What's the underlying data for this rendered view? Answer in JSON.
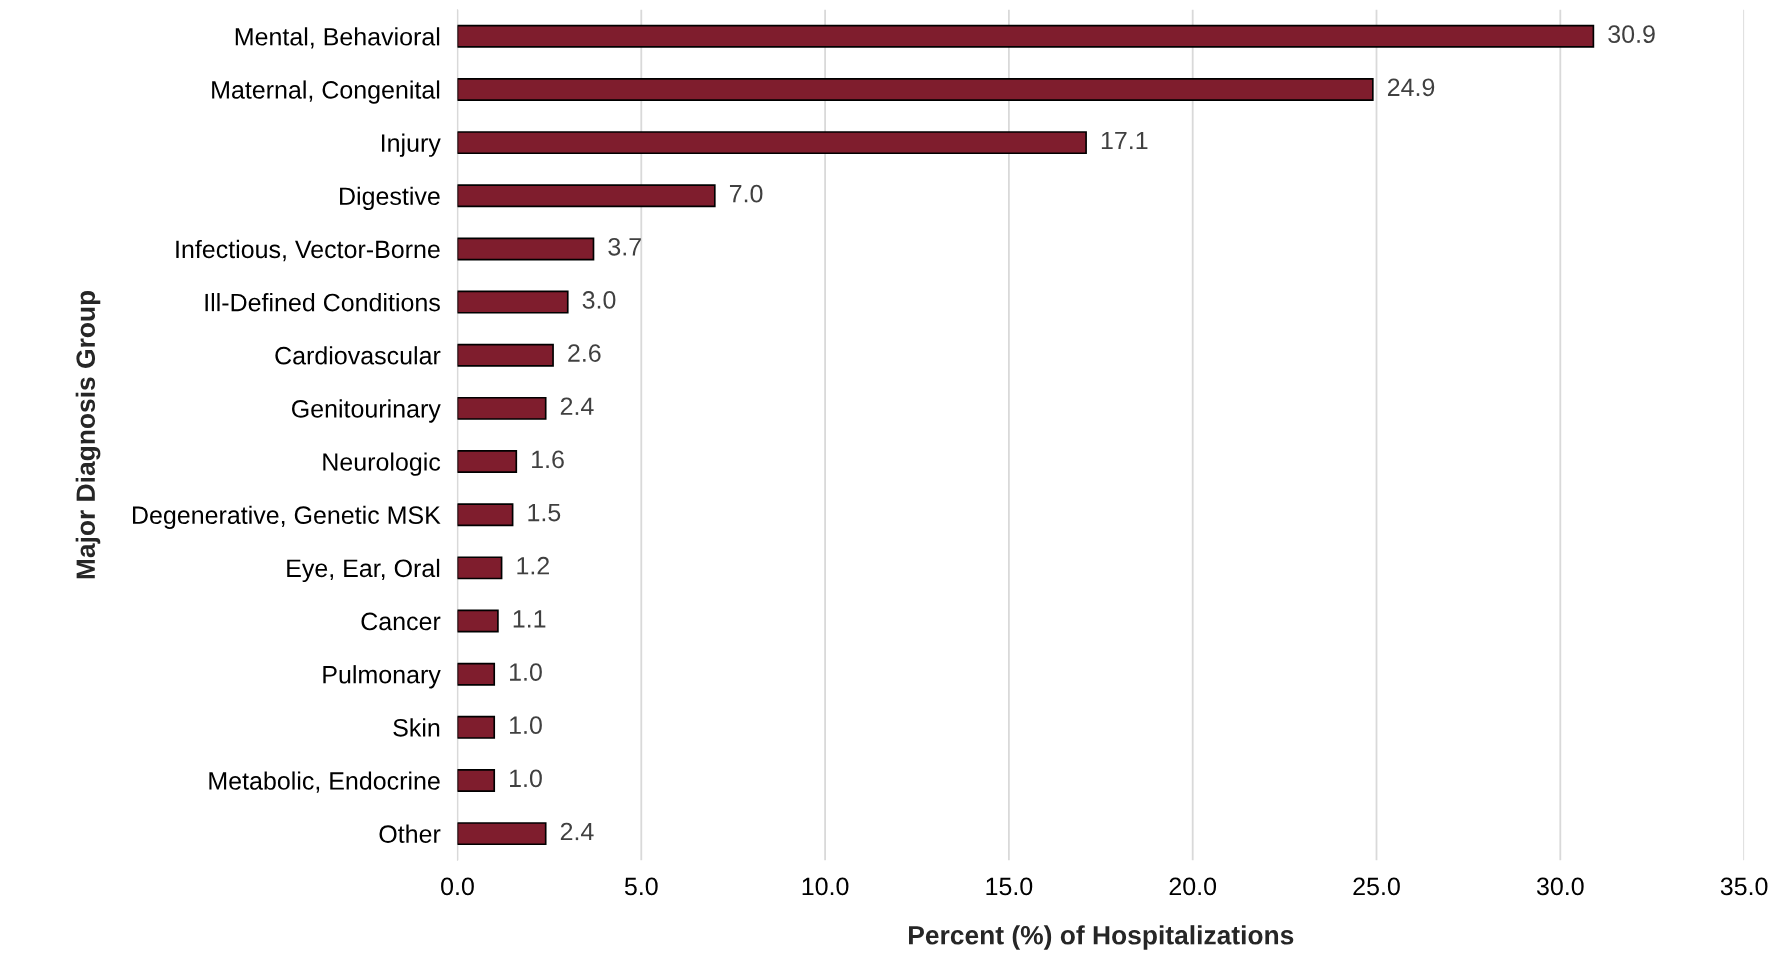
{
  "chart_data": {
    "type": "bar",
    "orientation": "horizontal",
    "xlabel": "Percent (%) of Hospitalizations",
    "ylabel": "Major Diagnosis Group",
    "categories": [
      "Mental, Behavioral",
      "Maternal, Congenital",
      "Injury",
      "Digestive",
      "Infectious, Vector-Borne",
      "Ill-Defined Conditions",
      "Cardiovascular",
      "Genitourinary",
      "Neurologic",
      "Degenerative, Genetic MSK",
      "Eye, Ear, Oral",
      "Cancer",
      "Pulmonary",
      "Skin",
      "Metabolic, Endocrine",
      "Other"
    ],
    "values": [
      30.9,
      24.9,
      17.1,
      7.0,
      3.7,
      3.0,
      2.6,
      2.4,
      1.6,
      1.5,
      1.2,
      1.1,
      1.0,
      1.0,
      1.0,
      2.4
    ],
    "value_labels": [
      "30.9",
      "24.9",
      "17.1",
      "7.0",
      "3.7",
      "3.0",
      "2.6",
      "2.4",
      "1.6",
      "1.5",
      "1.2",
      "1.1",
      "1.0",
      "1.0",
      "1.0",
      "2.4"
    ],
    "color": "#7f1d2d",
    "xlim": [
      0,
      35
    ],
    "xticks": [
      {
        "value": 0,
        "label": "0.0"
      },
      {
        "value": 5,
        "label": "5.0"
      },
      {
        "value": 10,
        "label": "10.0"
      },
      {
        "value": 15,
        "label": "15.0"
      },
      {
        "value": 20,
        "label": "20.0"
      },
      {
        "value": 25,
        "label": "25.0"
      },
      {
        "value": 30,
        "label": "30.0"
      },
      {
        "value": 35,
        "label": "35.0"
      }
    ],
    "grid": "x"
  }
}
